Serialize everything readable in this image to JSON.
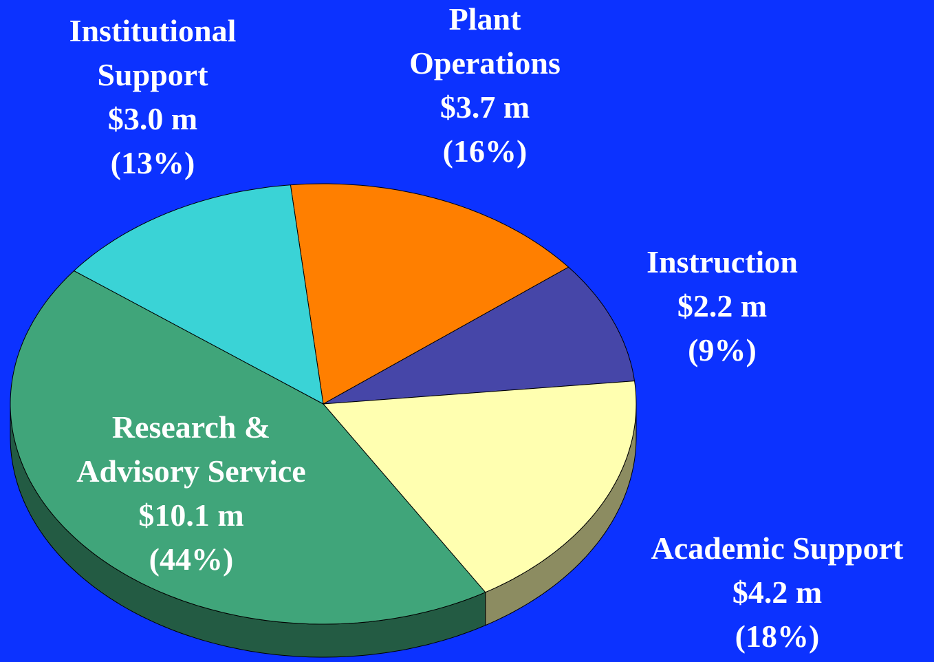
{
  "chart_data": {
    "type": "pie3d",
    "categories": [
      "Plant Operations",
      "Instruction",
      "Academic Support",
      "Research & Advisory Service",
      "Institutional Support"
    ],
    "values": [
      16,
      9,
      18,
      44,
      13
    ],
    "value_labels": [
      "(16%)",
      "(9%)",
      "(18%)",
      "(44%)",
      "(13%)"
    ],
    "amounts": [
      3.7,
      2.2,
      4.2,
      10.1,
      3.0
    ],
    "amount_labels": [
      "$3.7 m",
      "$2.2 m",
      "$4.2 m",
      "$10.1 m",
      "$3.0 m"
    ],
    "colors": [
      "#ff7f00",
      "#4646a8",
      "#ffffb0",
      "#40a57a",
      "#3ad3d6"
    ]
  }
}
